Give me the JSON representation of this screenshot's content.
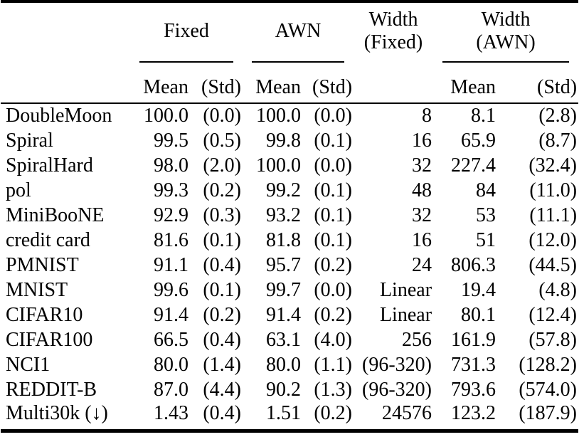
{
  "table": {
    "colors": {
      "text": "#000000",
      "background": "#ffffff",
      "rule": "#000000"
    },
    "header": {
      "col_groups": {
        "fixed": "Fixed",
        "awn": "AWN",
        "width_fixed_line1": "Width",
        "width_fixed_line2": "(Fixed)",
        "width_awn_line1": "Width",
        "width_awn_line2": "(AWN)"
      },
      "sub": {
        "mean": "Mean",
        "std": "(Std)"
      }
    },
    "rows": [
      {
        "name": "DoubleMoon",
        "fixed_mean": "100.0",
        "fixed_std": "(0.0)",
        "awn_mean": "100.0",
        "awn_std": "(0.0)",
        "width_fixed": "8",
        "width_awn_mean": "8.1",
        "width_awn_std": "(2.8)"
      },
      {
        "name": "Spiral",
        "fixed_mean": "99.5",
        "fixed_std": "(0.5)",
        "awn_mean": "99.8",
        "awn_std": "(0.1)",
        "width_fixed": "16",
        "width_awn_mean": "65.9",
        "width_awn_std": "(8.7)"
      },
      {
        "name": "SpiralHard",
        "fixed_mean": "98.0",
        "fixed_std": "(2.0)",
        "awn_mean": "100.0",
        "awn_std": "(0.0)",
        "width_fixed": "32",
        "width_awn_mean": "227.4",
        "width_awn_std": "(32.4)"
      },
      {
        "name": "pol",
        "fixed_mean": "99.3",
        "fixed_std": "(0.2)",
        "awn_mean": "99.2",
        "awn_std": "(0.1)",
        "width_fixed": "48",
        "width_awn_mean": "84",
        "width_awn_std": "(11.0)"
      },
      {
        "name": "MiniBooNE",
        "fixed_mean": "92.9",
        "fixed_std": "(0.3)",
        "awn_mean": "93.2",
        "awn_std": "(0.1)",
        "width_fixed": "32",
        "width_awn_mean": "53",
        "width_awn_std": "(11.1)"
      },
      {
        "name": "credit card",
        "fixed_mean": "81.6",
        "fixed_std": "(0.1)",
        "awn_mean": "81.8",
        "awn_std": "(0.1)",
        "width_fixed": "16",
        "width_awn_mean": "51",
        "width_awn_std": "(12.0)"
      },
      {
        "name": "PMNIST",
        "fixed_mean": "91.1",
        "fixed_std": "(0.4)",
        "awn_mean": "95.7",
        "awn_std": "(0.2)",
        "width_fixed": "24",
        "width_awn_mean": "806.3",
        "width_awn_std": "(44.5)"
      },
      {
        "name": "MNIST",
        "fixed_mean": "99.6",
        "fixed_std": "(0.1)",
        "awn_mean": "99.7",
        "awn_std": "(0.0)",
        "width_fixed": "Linear",
        "width_awn_mean": "19.4",
        "width_awn_std": "(4.8)"
      },
      {
        "name": "CIFAR10",
        "fixed_mean": "91.4",
        "fixed_std": "(0.2)",
        "awn_mean": "91.4",
        "awn_std": "(0.2)",
        "width_fixed": "Linear",
        "width_awn_mean": "80.1",
        "width_awn_std": "(12.4)"
      },
      {
        "name": "CIFAR100",
        "fixed_mean": "66.5",
        "fixed_std": "(0.4)",
        "awn_mean": "63.1",
        "awn_std": "(4.0)",
        "width_fixed": "256",
        "width_awn_mean": "161.9",
        "width_awn_std": "(57.8)"
      },
      {
        "name": "NCI1",
        "fixed_mean": "80.0",
        "fixed_std": "(1.4)",
        "awn_mean": "80.0",
        "awn_std": "(1.1)",
        "width_fixed": "(96-320)",
        "width_awn_mean": "731.3",
        "width_awn_std": "(128.2)"
      },
      {
        "name": "REDDIT-B",
        "fixed_mean": "87.0",
        "fixed_std": "(4.4)",
        "awn_mean": "90.2",
        "awn_std": "(1.3)",
        "width_fixed": "(96-320)",
        "width_awn_mean": "793.6",
        "width_awn_std": "(574.0)"
      },
      {
        "name": "Multi30k (↓)",
        "fixed_mean": "1.43",
        "fixed_std": "(0.4)",
        "awn_mean": "1.51",
        "awn_std": "(0.2)",
        "width_fixed": "24576",
        "width_awn_mean": "123.2",
        "width_awn_std": "(187.9)"
      }
    ]
  }
}
